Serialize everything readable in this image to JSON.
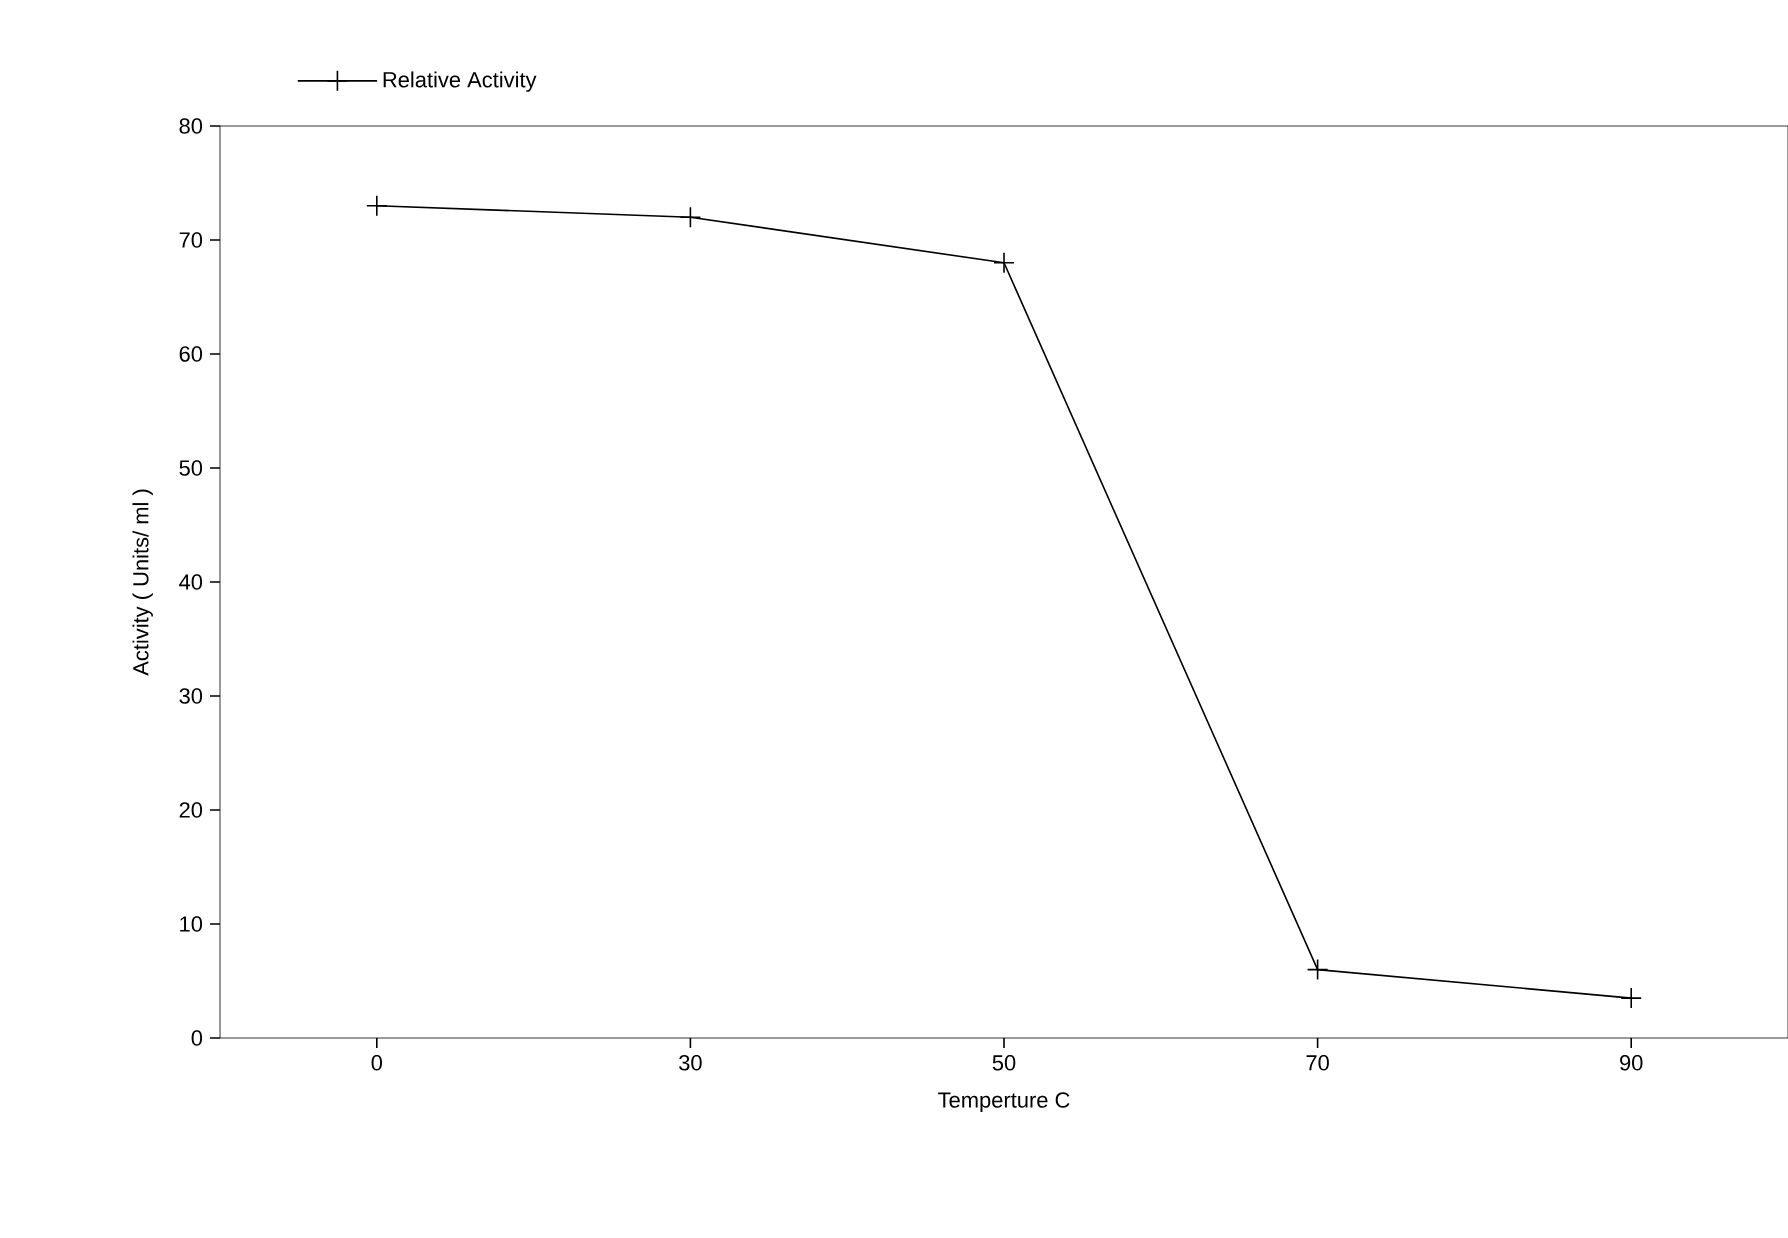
{
  "chart_data": {
    "type": "line",
    "xlabel": "Temperture    C",
    "ylabel": "Activity ( Units/ ml )",
    "categories": [
      "0",
      "30",
      "50",
      "70",
      "90"
    ],
    "series": [
      {
        "name": "Relative Activity",
        "color": "#000000",
        "values": [
          73,
          72,
          68,
          6,
          3.5
        ]
      }
    ],
    "ylim": [
      0,
      80
    ],
    "yticks": [
      0,
      10,
      20,
      30,
      40,
      50,
      60,
      70,
      80
    ],
    "legend": "top left",
    "marker": "cross",
    "line_style": "solid"
  }
}
